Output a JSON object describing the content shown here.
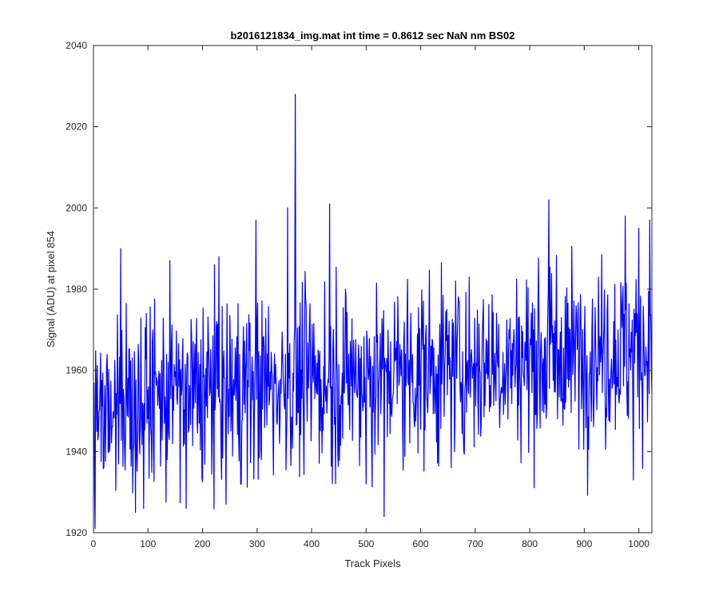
{
  "chart_data": {
    "type": "line",
    "title": "b2016121834_img.mat int time = 0.8612 sec  NaN nm BS02",
    "xlabel": "Track Pixels",
    "ylabel": "Signal (ADU) at pixel 854",
    "xlim": [
      0,
      1024
    ],
    "ylim": [
      1920,
      2040
    ],
    "xticks": [
      0,
      100,
      200,
      300,
      400,
      500,
      600,
      700,
      800,
      900,
      1000
    ],
    "yticks": [
      1920,
      1940,
      1960,
      1980,
      2000,
      2020,
      2040
    ],
    "grid": false,
    "legend": "none",
    "series_color": "#0000ff",
    "series": [
      {
        "x_start": 1,
        "x_step": 1,
        "count": 1024,
        "mean_start": 1952,
        "mean_end": 1966,
        "noise_std": 11,
        "seed": 854,
        "spikes": [
          {
            "x": 370,
            "y": 2028
          },
          {
            "x": 433,
            "y": 2001
          },
          {
            "x": 356,
            "y": 2000
          },
          {
            "x": 835,
            "y": 2002
          },
          {
            "x": 298,
            "y": 1997
          },
          {
            "x": 533,
            "y": 1924
          },
          {
            "x": 500,
            "y": 1932
          },
          {
            "x": 77,
            "y": 1925
          },
          {
            "x": 92,
            "y": 1926
          },
          {
            "x": 170,
            "y": 1926
          },
          {
            "x": 243,
            "y": 1927
          },
          {
            "x": 990,
            "y": 1933
          },
          {
            "x": 50,
            "y": 1990
          },
          {
            "x": 140,
            "y": 1987
          },
          {
            "x": 230,
            "y": 1988
          },
          {
            "x": 1000,
            "y": 1995
          },
          {
            "x": 1020,
            "y": 1997
          },
          {
            "x": 975,
            "y": 1998
          }
        ]
      }
    ]
  }
}
